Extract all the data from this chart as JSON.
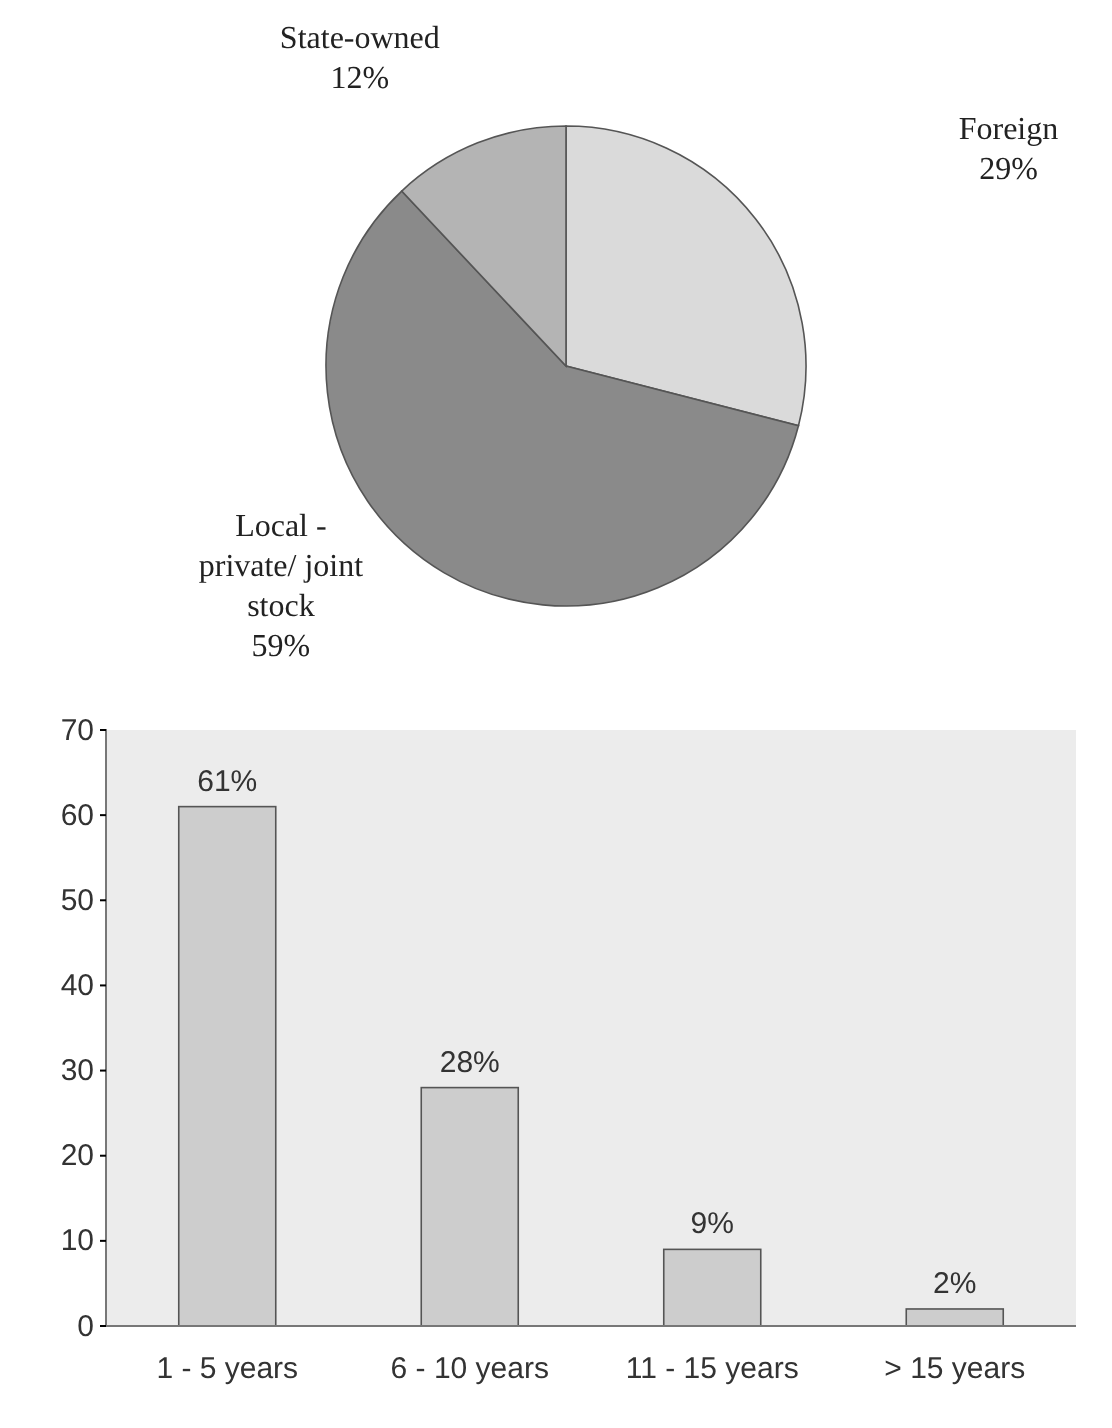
{
  "chart_data": [
    {
      "type": "pie",
      "categories": [
        "Foreign",
        "Local - private/ joint stock",
        "State-owned"
      ],
      "values": [
        29,
        59,
        12
      ],
      "colors": [
        "#dadada",
        "#8a8a8a",
        "#b4b4b4"
      ],
      "value_labels": [
        "29%",
        "59%",
        "12%"
      ]
    },
    {
      "type": "bar",
      "categories": [
        "1 - 5 years",
        "6 - 10 years",
        "11 - 15 years",
        "> 15 years"
      ],
      "values": [
        61,
        28,
        9,
        2
      ],
      "color": "#cdcdcd",
      "value_labels": [
        "61%",
        "28%",
        "9%",
        "2%"
      ],
      "ylim": [
        0,
        70
      ],
      "yticks": [
        0,
        10,
        20,
        30,
        40,
        50,
        60,
        70
      ],
      "grid": false
    }
  ]
}
